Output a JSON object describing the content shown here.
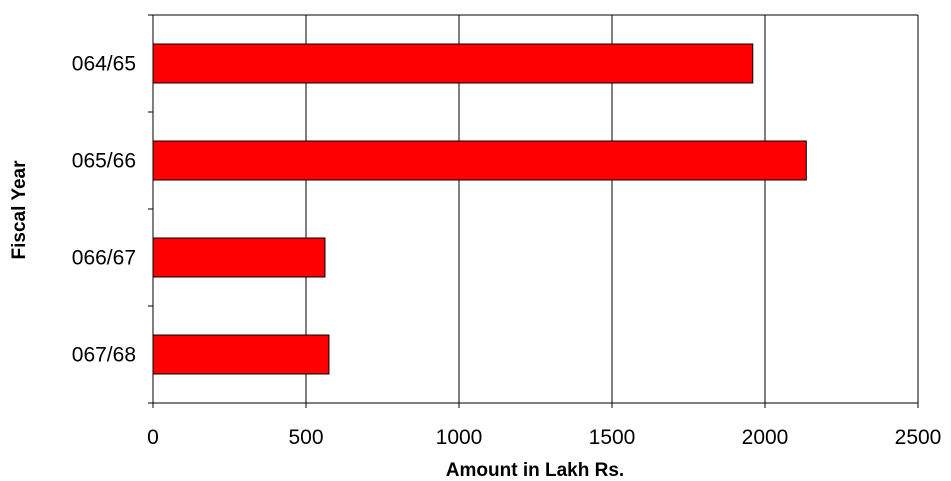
{
  "chart_data": {
    "type": "bar",
    "orientation": "horizontal",
    "categories": [
      "064/65",
      "065/66",
      "066/67",
      "067/68"
    ],
    "values": [
      1960,
      2135,
      562,
      575
    ],
    "title": "",
    "xlabel": "Amount in Lakh Rs.",
    "ylabel": "Fiscal Year",
    "xlim": [
      0,
      2500
    ],
    "xticks": [
      0,
      500,
      1000,
      1500,
      2000,
      2500
    ],
    "grid": "vertical major gridlines",
    "legend": "none",
    "bar_color": "#FF0000",
    "bar_edge_color": "#000000"
  }
}
